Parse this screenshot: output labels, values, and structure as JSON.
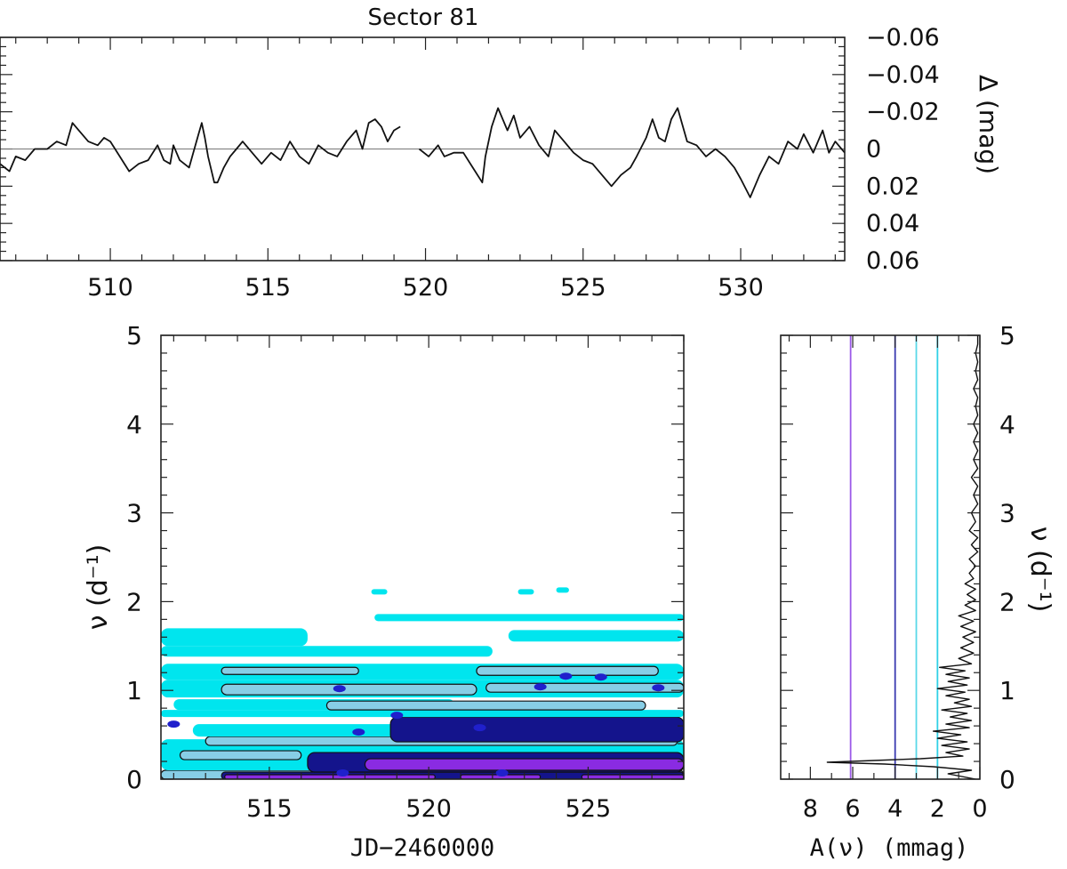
{
  "chart_data": [
    {
      "id": "lightcurve",
      "type": "line",
      "title": "Sector 81",
      "xlabel": "",
      "ylabel": "Δ (mag)",
      "xlim": [
        506.5,
        533.3
      ],
      "ylim": [
        -0.06,
        0.06
      ],
      "y_inverted": true,
      "yaxis_side": "right",
      "xticks": [
        510,
        515,
        520,
        525,
        530
      ],
      "xtick_labels": [
        "510",
        "515",
        "520",
        "525",
        "530"
      ],
      "yticks": [
        -0.06,
        -0.04,
        -0.02,
        0,
        0.02,
        0.04,
        0.06
      ],
      "ytick_labels": [
        "−0.06",
        "−0.04",
        "−0.02",
        "0",
        "0.02",
        "0.04",
        "0.06"
      ],
      "reference_line": 0,
      "segments": [
        [
          [
            506.5,
            0.008
          ],
          [
            506.8,
            0.012
          ],
          [
            507.0,
            0.004
          ],
          [
            507.3,
            0.006
          ],
          [
            507.6,
            0.0
          ],
          [
            508.0,
            0.0
          ],
          [
            508.3,
            -0.004
          ],
          [
            508.6,
            -0.002
          ],
          [
            508.8,
            -0.014
          ],
          [
            509.0,
            -0.01
          ],
          [
            509.3,
            -0.004
          ],
          [
            509.6,
            -0.002
          ],
          [
            509.8,
            -0.006
          ],
          [
            510.0,
            -0.004
          ],
          [
            510.3,
            0.004
          ],
          [
            510.6,
            0.012
          ],
          [
            510.9,
            0.008
          ],
          [
            511.2,
            0.006
          ],
          [
            511.5,
            -0.002
          ],
          [
            511.7,
            0.006
          ],
          [
            511.9,
            0.008
          ],
          [
            512.0,
            -0.002
          ],
          [
            512.2,
            0.006
          ],
          [
            512.5,
            0.01
          ],
          [
            512.6,
            0.004
          ],
          [
            512.8,
            -0.008
          ],
          [
            512.9,
            -0.014
          ],
          [
            513.0,
            -0.006
          ],
          [
            513.1,
            0.004
          ],
          [
            513.3,
            0.018
          ],
          [
            513.4,
            0.018
          ],
          [
            513.6,
            0.01
          ],
          [
            513.8,
            0.004
          ],
          [
            514.0,
            0.0
          ],
          [
            514.2,
            -0.004
          ],
          [
            514.5,
            0.002
          ],
          [
            514.8,
            0.008
          ],
          [
            515.1,
            0.002
          ],
          [
            515.4,
            0.006
          ],
          [
            515.7,
            -0.004
          ],
          [
            516.0,
            0.004
          ],
          [
            516.3,
            0.008
          ],
          [
            516.6,
            -0.002
          ],
          [
            516.9,
            0.002
          ],
          [
            517.2,
            0.004
          ],
          [
            517.5,
            -0.004
          ],
          [
            517.8,
            -0.01
          ],
          [
            518.0,
            0.0
          ],
          [
            518.2,
            -0.014
          ],
          [
            518.4,
            -0.016
          ],
          [
            518.6,
            -0.012
          ],
          [
            518.8,
            -0.004
          ],
          [
            519.0,
            -0.01
          ],
          [
            519.2,
            -0.012
          ]
        ],
        [
          [
            519.8,
            0.0
          ],
          [
            520.1,
            0.004
          ],
          [
            520.4,
            -0.002
          ],
          [
            520.6,
            0.004
          ],
          [
            520.9,
            0.002
          ],
          [
            521.2,
            0.002
          ],
          [
            521.5,
            0.01
          ],
          [
            521.8,
            0.018
          ],
          [
            521.9,
            0.004
          ],
          [
            522.1,
            -0.012
          ],
          [
            522.3,
            -0.022
          ],
          [
            522.6,
            -0.01
          ],
          [
            522.8,
            -0.018
          ],
          [
            523.0,
            -0.006
          ],
          [
            523.3,
            -0.012
          ],
          [
            523.6,
            -0.002
          ],
          [
            523.9,
            0.004
          ],
          [
            524.1,
            -0.01
          ],
          [
            524.4,
            -0.004
          ],
          [
            524.7,
            0.002
          ],
          [
            525.0,
            0.006
          ],
          [
            525.3,
            0.008
          ],
          [
            525.6,
            0.014
          ],
          [
            525.9,
            0.02
          ],
          [
            526.2,
            0.014
          ],
          [
            526.5,
            0.01
          ],
          [
            526.7,
            0.004
          ],
          [
            527.0,
            -0.006
          ],
          [
            527.2,
            -0.016
          ],
          [
            527.4,
            -0.006
          ],
          [
            527.6,
            -0.004
          ],
          [
            527.8,
            -0.016
          ],
          [
            528.0,
            -0.022
          ],
          [
            528.3,
            -0.004
          ],
          [
            528.6,
            -0.002
          ],
          [
            528.9,
            0.004
          ],
          [
            529.2,
            0.0
          ],
          [
            529.5,
            0.004
          ],
          [
            529.8,
            0.01
          ],
          [
            530.0,
            0.016
          ],
          [
            530.3,
            0.026
          ],
          [
            530.6,
            0.014
          ],
          [
            530.9,
            0.004
          ],
          [
            531.2,
            0.008
          ],
          [
            531.5,
            -0.004
          ],
          [
            531.8,
            0.0
          ],
          [
            532.0,
            -0.008
          ],
          [
            532.3,
            0.002
          ],
          [
            532.6,
            -0.01
          ],
          [
            532.8,
            0.002
          ],
          [
            533.0,
            -0.004
          ],
          [
            533.3,
            0.002
          ]
        ]
      ]
    },
    {
      "id": "wavelet-map",
      "type": "heatmap",
      "title": "",
      "xlabel": "JD−2460000",
      "ylabel": "ν (d⁻¹)",
      "xlim": [
        511.6,
        528.0
      ],
      "ylim": [
        0,
        5
      ],
      "xticks": [
        515,
        520,
        525
      ],
      "xtick_labels": [
        "515",
        "520",
        "525"
      ],
      "yticks": [
        0,
        1,
        2,
        3,
        4,
        5
      ],
      "ytick_labels": [
        "0",
        "1",
        "2",
        "3",
        "4",
        "5"
      ],
      "levels": [
        {
          "level": 1,
          "color": "#00e5ee"
        },
        {
          "level": 2,
          "color": "#87cee6"
        },
        {
          "level": 3,
          "color": "#14148c"
        },
        {
          "level": 4,
          "color": "#2020cc"
        },
        {
          "level": 5,
          "color": "#8a2be2"
        }
      ],
      "bands": [
        {
          "x0": 511.6,
          "x1": 528.0,
          "y0": 0.0,
          "y1": 0.1,
          "level": 2
        },
        {
          "x0": 511.6,
          "x1": 528.0,
          "y0": 0.1,
          "y1": 0.45,
          "level": 1
        },
        {
          "x0": 513.5,
          "x1": 528.0,
          "y0": 0.0,
          "y1": 0.08,
          "level": 3
        },
        {
          "x0": 516.2,
          "x1": 528.0,
          "y0": 0.08,
          "y1": 0.3,
          "level": 3
        },
        {
          "x0": 518.0,
          "x1": 528.0,
          "y0": 0.1,
          "y1": 0.23,
          "level": 5
        },
        {
          "x0": 513.6,
          "x1": 520.2,
          "y0": 0.0,
          "y1": 0.05,
          "level": 5
        },
        {
          "x0": 521.0,
          "x1": 523.5,
          "y0": 0.0,
          "y1": 0.05,
          "level": 5
        },
        {
          "x0": 524.8,
          "x1": 528.0,
          "y0": 0.0,
          "y1": 0.05,
          "level": 5
        },
        {
          "x0": 512.2,
          "x1": 516.0,
          "y0": 0.22,
          "y1": 0.32,
          "level": 2
        },
        {
          "x0": 513.0,
          "x1": 527.8,
          "y0": 0.38,
          "y1": 0.48,
          "level": 2
        },
        {
          "x0": 512.6,
          "x1": 528.0,
          "y0": 0.48,
          "y1": 0.62,
          "level": 1
        },
        {
          "x0": 518.8,
          "x1": 528.0,
          "y0": 0.42,
          "y1": 0.7,
          "level": 3
        },
        {
          "x0": 511.6,
          "x1": 528.0,
          "y0": 0.7,
          "y1": 0.78,
          "level": 1
        },
        {
          "x0": 512.0,
          "x1": 520.8,
          "y0": 0.78,
          "y1": 0.9,
          "level": 1
        },
        {
          "x0": 516.8,
          "x1": 526.8,
          "y0": 0.78,
          "y1": 0.88,
          "level": 2
        },
        {
          "x0": 511.6,
          "x1": 528.0,
          "y0": 0.92,
          "y1": 1.12,
          "level": 1
        },
        {
          "x0": 513.5,
          "x1": 521.5,
          "y0": 0.95,
          "y1": 1.07,
          "level": 2
        },
        {
          "x0": 521.8,
          "x1": 528.0,
          "y0": 0.98,
          "y1": 1.08,
          "level": 2
        },
        {
          "x0": 511.6,
          "x1": 528.0,
          "y0": 1.12,
          "y1": 1.3,
          "level": 1
        },
        {
          "x0": 513.5,
          "x1": 517.8,
          "y0": 1.18,
          "y1": 1.26,
          "level": 2
        },
        {
          "x0": 521.5,
          "x1": 527.2,
          "y0": 1.17,
          "y1": 1.27,
          "level": 2
        },
        {
          "x0": 511.6,
          "x1": 522.0,
          "y0": 1.38,
          "y1": 1.5,
          "level": 1
        },
        {
          "x0": 511.6,
          "x1": 516.2,
          "y0": 1.5,
          "y1": 1.7,
          "level": 1
        },
        {
          "x0": 518.3,
          "x1": 528.0,
          "y0": 1.78,
          "y1": 1.86,
          "level": 1
        },
        {
          "x0": 522.5,
          "x1": 528.0,
          "y0": 1.55,
          "y1": 1.68,
          "level": 1
        },
        {
          "x0": 518.2,
          "x1": 518.7,
          "y0": 2.08,
          "y1": 2.14,
          "level": 1
        },
        {
          "x0": 522.8,
          "x1": 523.3,
          "y0": 2.08,
          "y1": 2.14,
          "level": 1
        },
        {
          "x0": 524.0,
          "x1": 524.4,
          "y0": 2.1,
          "y1": 2.16,
          "level": 1
        }
      ],
      "blobs": [
        {
          "x": 512.0,
          "y": 0.62,
          "level": 4
        },
        {
          "x": 517.2,
          "y": 1.02,
          "level": 4
        },
        {
          "x": 517.8,
          "y": 0.53,
          "level": 4
        },
        {
          "x": 519.0,
          "y": 0.72,
          "level": 4
        },
        {
          "x": 521.6,
          "y": 0.58,
          "level": 4
        },
        {
          "x": 523.5,
          "y": 1.04,
          "level": 4
        },
        {
          "x": 524.3,
          "y": 1.16,
          "level": 4
        },
        {
          "x": 525.4,
          "y": 1.15,
          "level": 4
        },
        {
          "x": 527.2,
          "y": 1.03,
          "level": 4
        },
        {
          "x": 517.3,
          "y": 0.07,
          "level": 4
        },
        {
          "x": 522.3,
          "y": 0.07,
          "level": 4
        }
      ]
    },
    {
      "id": "amplitude-spectrum",
      "type": "line",
      "title": "",
      "xlabel": "A(ν) (mmag)",
      "ylabel": "ν (d⁻¹)",
      "xlim": [
        9.4,
        0
      ],
      "ylim": [
        0,
        5
      ],
      "yaxis_side": "right",
      "xticks": [
        8,
        6,
        4,
        2,
        0
      ],
      "xtick_labels": [
        "8",
        "6",
        "4",
        "2",
        "0"
      ],
      "yticks": [
        0,
        1,
        2,
        3,
        4,
        5
      ],
      "ytick_labels": [
        "0",
        "1",
        "2",
        "3",
        "4",
        "5"
      ],
      "thresholds": [
        {
          "value": 6.1,
          "color": "#9b59e8"
        },
        {
          "value": 4.0,
          "color": "#3a3ab0"
        },
        {
          "value": 3.0,
          "color": "#5ad8e8"
        },
        {
          "value": 2.0,
          "color": "#30d0e6"
        }
      ],
      "spectrum": [
        [
          0.0,
          0.2
        ],
        [
          0.06,
          1.5
        ],
        [
          0.1,
          0.4
        ],
        [
          0.14,
          2.2
        ],
        [
          0.17,
          4.5
        ],
        [
          0.19,
          7.2
        ],
        [
          0.21,
          5.0
        ],
        [
          0.23,
          2.8
        ],
        [
          0.26,
          0.8
        ],
        [
          0.3,
          1.6
        ],
        [
          0.34,
          0.5
        ],
        [
          0.38,
          1.8
        ],
        [
          0.42,
          0.6
        ],
        [
          0.46,
          2.0
        ],
        [
          0.5,
          0.9
        ],
        [
          0.54,
          2.2
        ],
        [
          0.58,
          0.5
        ],
        [
          0.62,
          1.6
        ],
        [
          0.66,
          0.4
        ],
        [
          0.7,
          1.4
        ],
        [
          0.74,
          0.6
        ],
        [
          0.78,
          1.8
        ],
        [
          0.82,
          0.4
        ],
        [
          0.86,
          1.2
        ],
        [
          0.9,
          0.5
        ],
        [
          0.94,
          1.6
        ],
        [
          0.98,
          0.7
        ],
        [
          1.02,
          2.0
        ],
        [
          1.06,
          0.6
        ],
        [
          1.1,
          1.5
        ],
        [
          1.14,
          0.5
        ],
        [
          1.18,
          1.6
        ],
        [
          1.22,
          0.7
        ],
        [
          1.26,
          1.9
        ],
        [
          1.3,
          0.4
        ],
        [
          1.36,
          1.0
        ],
        [
          1.42,
          0.3
        ],
        [
          1.48,
          0.9
        ],
        [
          1.54,
          0.3
        ],
        [
          1.6,
          0.8
        ],
        [
          1.66,
          0.2
        ],
        [
          1.72,
          0.9
        ],
        [
          1.78,
          0.3
        ],
        [
          1.84,
          1.0
        ],
        [
          1.9,
          0.2
        ],
        [
          1.96,
          0.7
        ],
        [
          2.02,
          0.2
        ],
        [
          2.08,
          0.6
        ],
        [
          2.14,
          0.2
        ],
        [
          2.2,
          0.7
        ],
        [
          2.26,
          0.3
        ],
        [
          2.32,
          0.5
        ],
        [
          2.4,
          0.2
        ],
        [
          2.48,
          0.5
        ],
        [
          2.56,
          0.1
        ],
        [
          2.64,
          0.4
        ],
        [
          2.72,
          0.1
        ],
        [
          2.8,
          0.5
        ],
        [
          2.9,
          0.2
        ],
        [
          3.0,
          0.4
        ],
        [
          3.1,
          0.1
        ],
        [
          3.2,
          0.3
        ],
        [
          3.3,
          0.1
        ],
        [
          3.4,
          0.4
        ],
        [
          3.5,
          0.1
        ],
        [
          3.6,
          0.3
        ],
        [
          3.7,
          0.1
        ],
        [
          3.8,
          0.3
        ],
        [
          3.9,
          0.1
        ],
        [
          4.0,
          0.3
        ],
        [
          4.1,
          0.1
        ],
        [
          4.2,
          0.2
        ],
        [
          4.3,
          0.1
        ],
        [
          4.4,
          0.3
        ],
        [
          4.5,
          0.1
        ],
        [
          4.6,
          0.2
        ],
        [
          4.7,
          0.1
        ],
        [
          4.8,
          0.2
        ],
        [
          4.9,
          0.1
        ],
        [
          5.0,
          0.1
        ]
      ]
    }
  ]
}
